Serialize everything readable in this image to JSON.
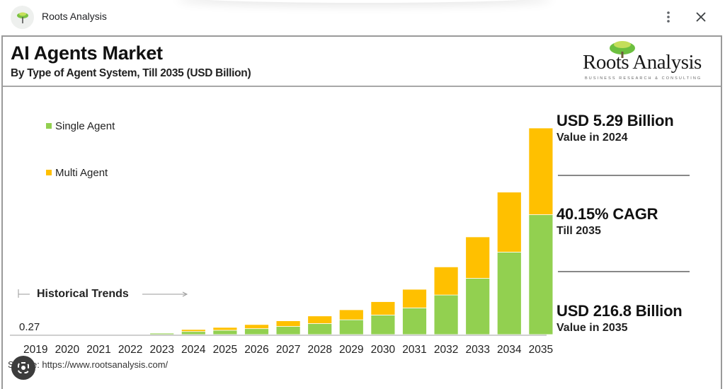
{
  "browser": {
    "site_name": "Roots Analysis",
    "icons": {
      "site": "tree-logo-icon",
      "more": "more-vertical-icon",
      "close": "close-icon",
      "lens": "google-lens-icon"
    }
  },
  "header": {
    "title": "AI Agents Market",
    "subtitle": "By Type of Agent System, Till 2035 (USD Billion)",
    "logo_text": "Roots Analysis",
    "logo_tagline": "BUSINESS RESEARCH & CONSULTING"
  },
  "stats": [
    {
      "value": "USD 5.29 Billion",
      "label": "Value in 2024"
    },
    {
      "value": "40.15% CAGR",
      "label": "Till 2035"
    },
    {
      "value": "USD 216.8 Billion",
      "label": "Value in 2035"
    }
  ],
  "source": "Source: https://www.rootsanalysis.com/",
  "colors": {
    "single": "#92d050",
    "multi": "#ffc000"
  },
  "chart_data": {
    "type": "bar",
    "stacked": true,
    "title": "AI Agents Market",
    "subtitle": "By Type of Agent System, Till 2035 (USD Billion)",
    "xlabel": "",
    "ylabel": "USD Billion",
    "categories": [
      "2019",
      "2020",
      "2021",
      "2022",
      "2023",
      "2024",
      "2025",
      "2026",
      "2027",
      "2028",
      "2029",
      "2030",
      "2031",
      "2032",
      "2033",
      "2034",
      "2035"
    ],
    "series": [
      {
        "name": "Single Agent",
        "color": "#92d050",
        "values": [
          0.15,
          0.2,
          0.3,
          0.5,
          1.5,
          3.2,
          4.5,
          6.2,
          8.5,
          11.5,
          15.5,
          20.5,
          28.0,
          41.5,
          59.0,
          86.5,
          125.8
        ]
      },
      {
        "name": "Multi Agent",
        "color": "#ffc000",
        "values": [
          0.12,
          0.1,
          0.1,
          0.2,
          0.6,
          2.1,
          3.0,
          4.3,
          5.9,
          8.0,
          10.5,
          14.0,
          19.5,
          29.5,
          43.5,
          63.0,
          91.0
        ]
      }
    ],
    "annotations": [
      {
        "text": "0.27",
        "category": "2019"
      },
      {
        "text": "Historical Trends",
        "range": [
          "2019",
          "2024"
        ]
      }
    ],
    "ylim": [
      0,
      216.8
    ],
    "grid": false,
    "legend": "top-left"
  }
}
